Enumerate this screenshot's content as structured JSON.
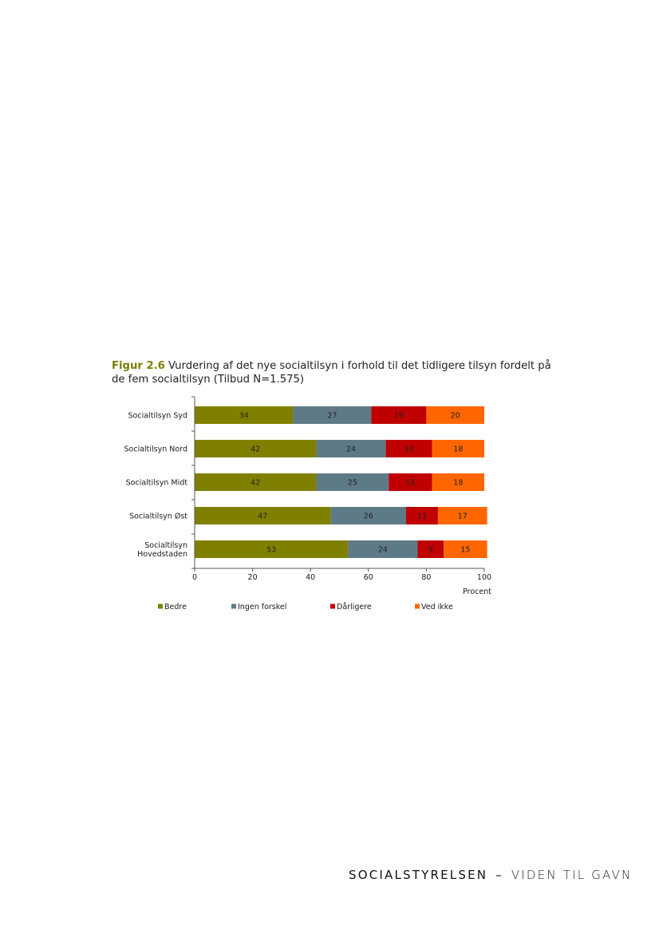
{
  "caption": {
    "label": "Figur 2.6",
    "text": "Vurdering af det nye socialtilsyn i forhold til det tidligere tilsyn fordelt på de fem socialtilsyn (Tilbud N=1.575)"
  },
  "chart_data": {
    "type": "bar",
    "orientation": "horizontal",
    "stacked": true,
    "categories": [
      "Socialtilsyn Syd",
      "Socialtilsyn Nord",
      "Socialtilsyn Midt",
      "Socialtilsyn Øst",
      "Socialtilsyn Hovedstaden"
    ],
    "series": [
      {
        "name": "Bedre",
        "color": "#808000",
        "values": [
          34,
          42,
          42,
          47,
          53
        ]
      },
      {
        "name": "Ingen forskel",
        "color": "#5f7a87",
        "values": [
          27,
          24,
          25,
          26,
          24
        ]
      },
      {
        "name": "Dårligere",
        "color": "#c00000",
        "values": [
          19,
          16,
          15,
          11,
          9
        ]
      },
      {
        "name": "Ved ikke",
        "color": "#ff6600",
        "values": [
          20,
          18,
          18,
          17,
          15
        ]
      }
    ],
    "xlim": [
      0,
      100
    ],
    "xticks": [
      0,
      20,
      40,
      60,
      80,
      100
    ],
    "xlabel": "Procent",
    "ylabel": "",
    "grid": false,
    "legend": "bottom"
  },
  "footer": {
    "brand": "SOCIALSTYRELSEN",
    "separator": "–",
    "tagline": "VIDEN TIL GAVN"
  }
}
